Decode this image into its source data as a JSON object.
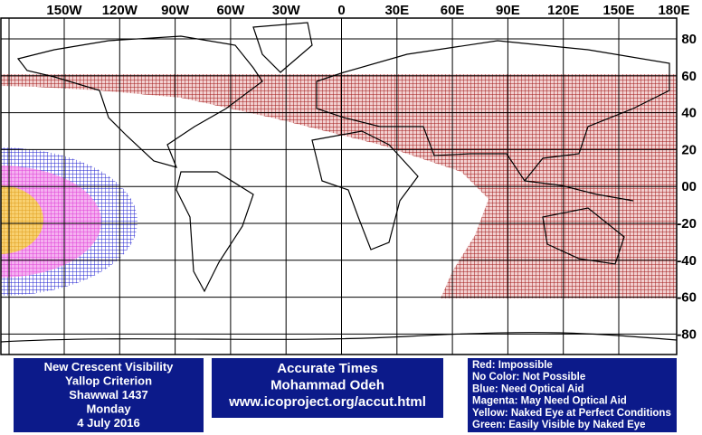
{
  "map": {
    "lon_labels": [
      "150W",
      "120W",
      "90W",
      "60W",
      "30W",
      "0",
      "30E",
      "60E",
      "90E",
      "120E",
      "150E",
      "180E"
    ],
    "lat_labels": [
      "80",
      "60",
      "40",
      "20",
      "00",
      "-20",
      "-40",
      "-60",
      "-80"
    ]
  },
  "info": {
    "lines": [
      "New Crescent Visibility",
      "Yallop Criterion",
      "Shawwal 1437",
      "Monday",
      "4 July 2016"
    ]
  },
  "credits": {
    "lines": [
      "Accurate Times",
      "Mohammad Odeh",
      "www.icoproject.org/accut.html"
    ]
  },
  "legend": {
    "lines": [
      "Red: Impossible",
      "No Color: Not Possible",
      "Blue: Need Optical Aid",
      "Magenta: May Need Optical Aid",
      "Yellow: Naked Eye at Perfect Conditions",
      "Green: Easily Visible by Naked Eye"
    ]
  }
}
